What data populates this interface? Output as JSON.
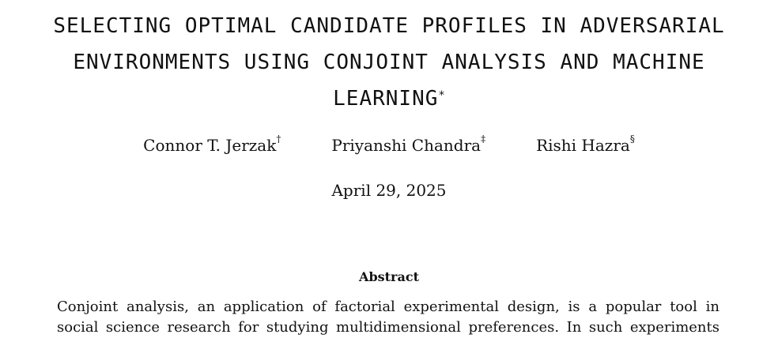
{
  "paper": {
    "title_lines": [
      "SELECTING OPTIMAL CANDIDATE PROFILES IN ADVERSARIAL",
      "ENVIRONMENTS USING CONJOINT ANALYSIS AND MACHINE",
      "LEARNING"
    ],
    "title_mark": "*",
    "authors": [
      {
        "name": "Connor T. Jerzak",
        "mark": "†"
      },
      {
        "name": "Priyanshi Chandra",
        "mark": "‡"
      },
      {
        "name": "Rishi Hazra",
        "mark": "§"
      }
    ],
    "date": "April 29, 2025",
    "abstract": {
      "heading": "Abstract",
      "lines": [
        "Conjoint analysis, an application of factorial experimental design, is a popular tool in",
        "social science research for studying multidimensional preferences. In such experiments"
      ]
    }
  }
}
